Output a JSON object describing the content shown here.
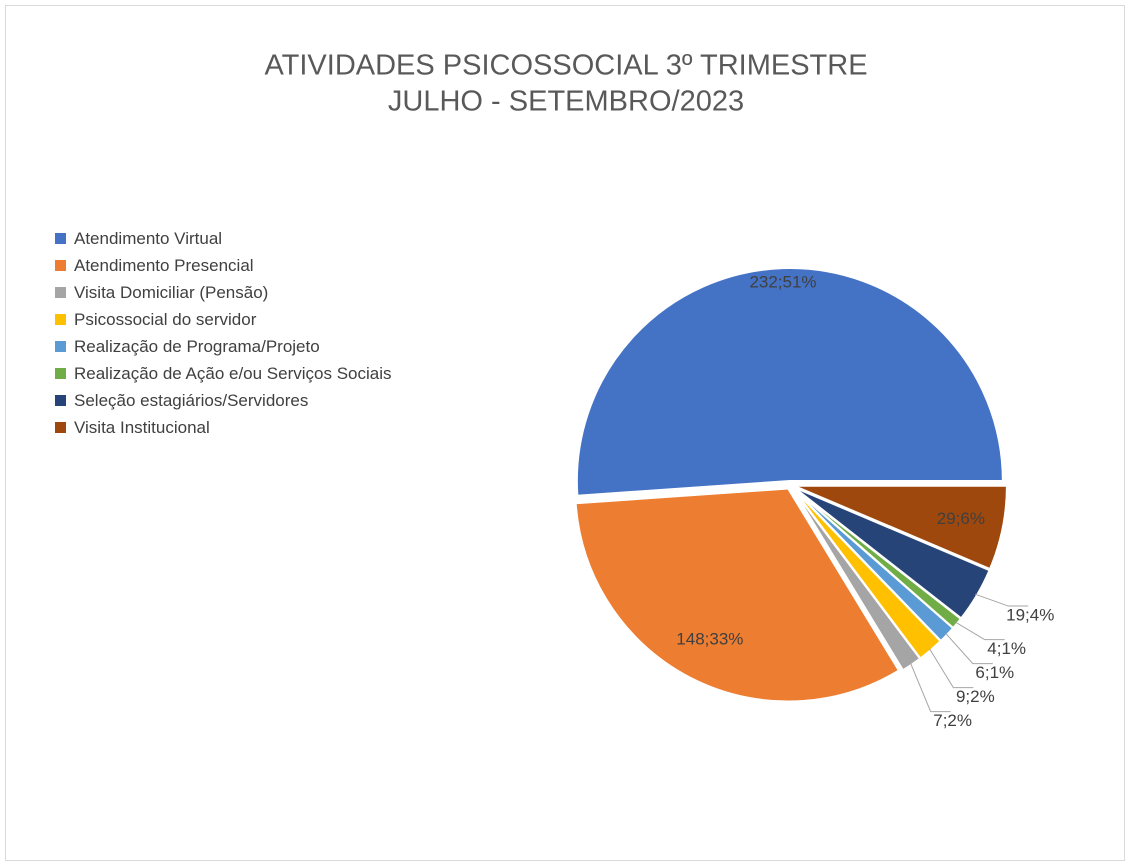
{
  "chart_data": {
    "type": "pie",
    "title": [
      "ATIVIDADES PSICOSSOCIAL 3º TRIMESTRE",
      "JULHO - SETEMBRO/2023"
    ],
    "categories": [
      "Atendimento Virtual",
      "Atendimento Presencial",
      "Visita Domiciliar (Pensão)",
      "Psicossocial do servidor",
      "Realização de Programa/Projeto",
      "Realização de Ação e/ou Serviços Sociais",
      "Seleção estagiários/Servidores",
      "Visita Institucional"
    ],
    "values": [
      232,
      148,
      7,
      9,
      6,
      4,
      19,
      29
    ],
    "value_labels": [
      "232;51%",
      "148;33%",
      "7;2%",
      "9;2%",
      "6;1%",
      "4;1%",
      "19;4%",
      "29;6%"
    ],
    "colors": [
      "#4472c4",
      "#ed7d31",
      "#a5a5a5",
      "#ffc000",
      "#5b9bd5",
      "#70ad47",
      "#264478",
      "#9e480e"
    ],
    "legend": "left"
  }
}
